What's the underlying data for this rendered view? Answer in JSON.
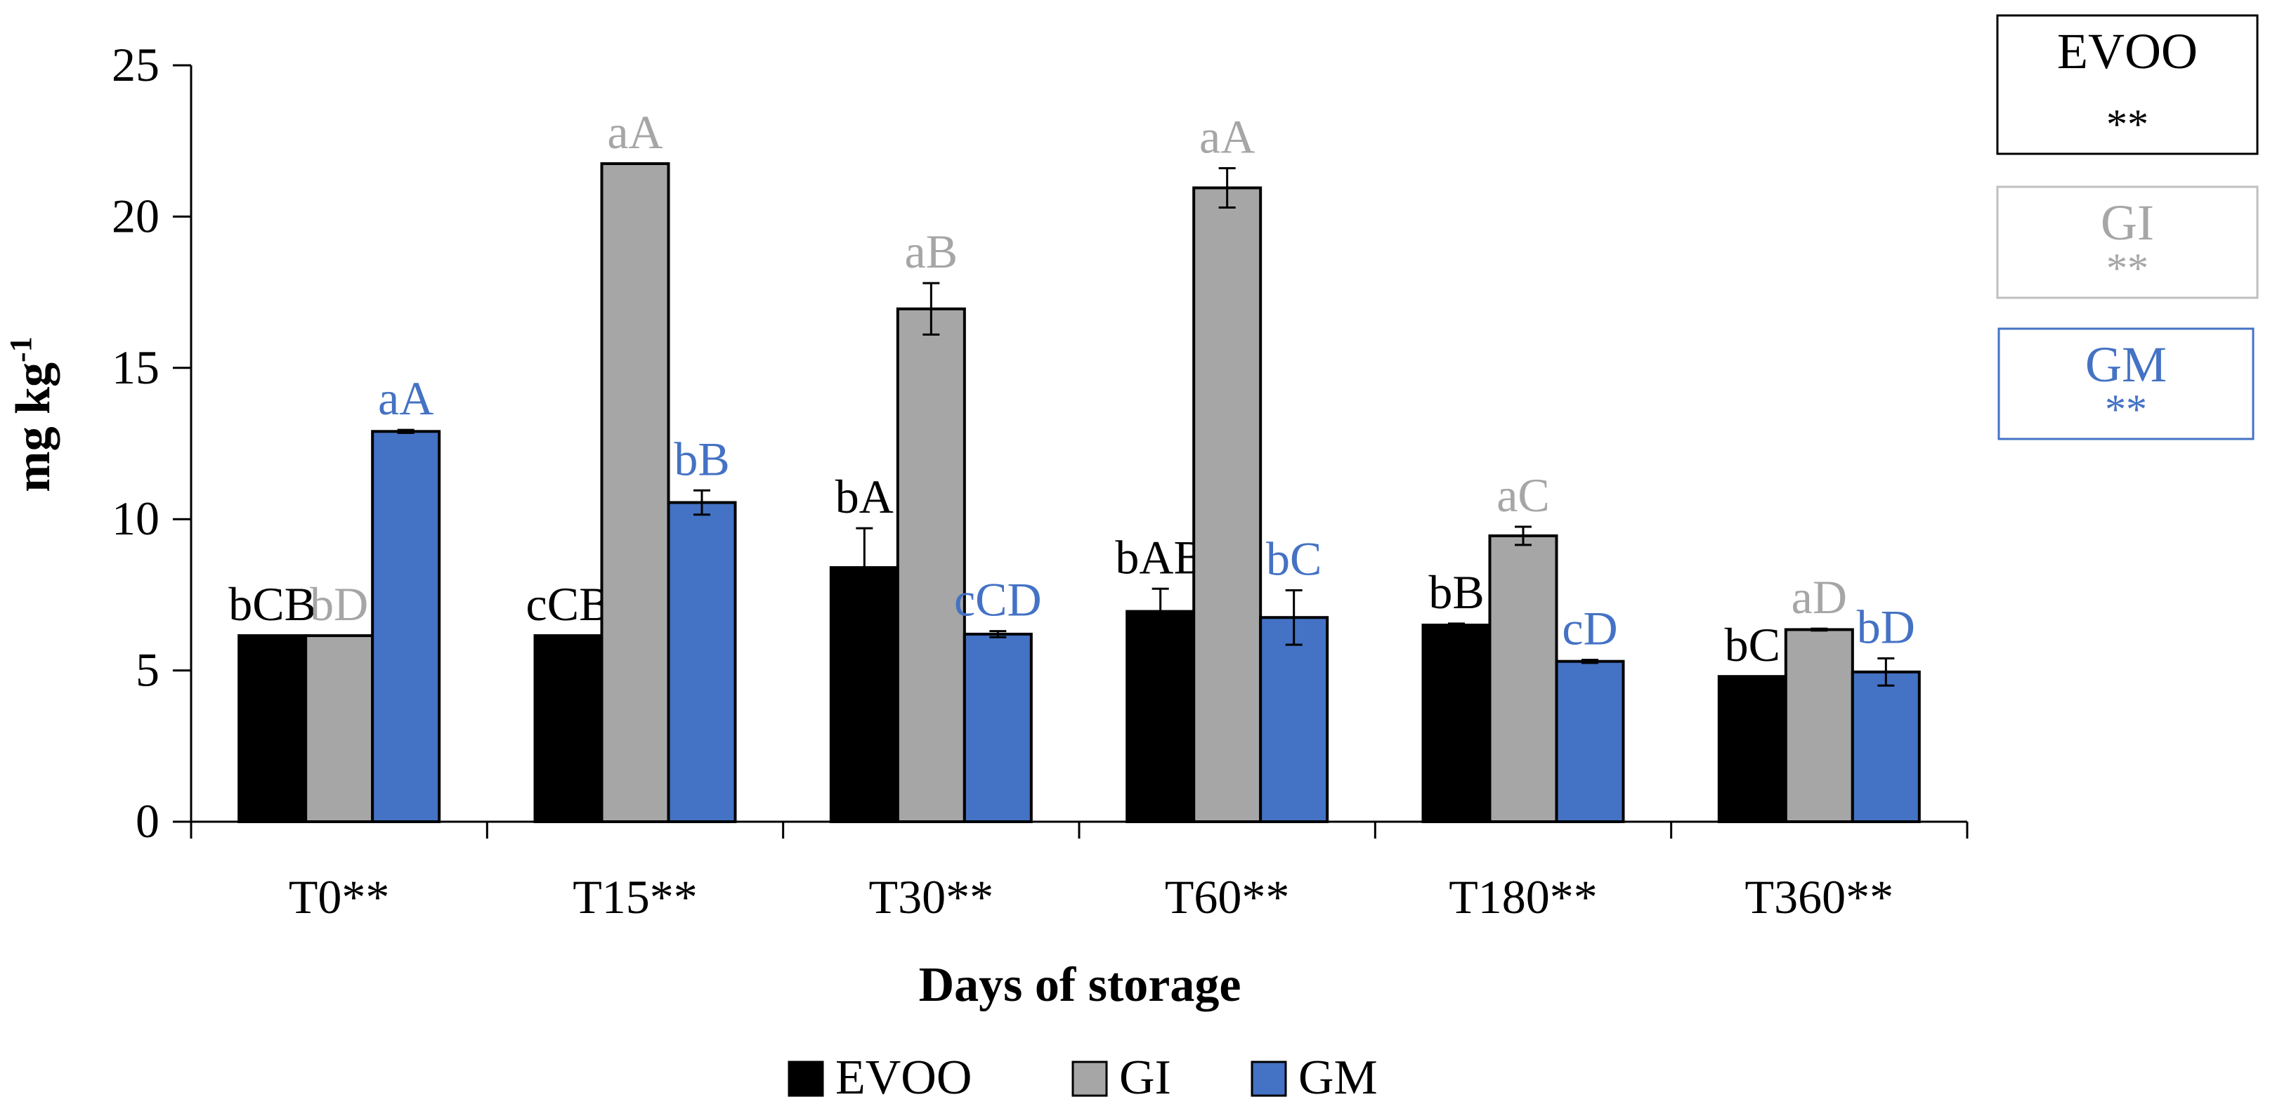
{
  "chart_data": {
    "type": "bar",
    "title": "",
    "xlabel": "Days of storage",
    "ylabel": "mg kg",
    "ylabel_superscript": "-1",
    "ylim": [
      0,
      25
    ],
    "yticks": [
      "0",
      "5",
      "10",
      "15",
      "20",
      "25"
    ],
    "categories": [
      "T0**",
      "T15**",
      "T30**",
      "T60**",
      "T180**",
      "T360**"
    ],
    "series": [
      {
        "name": "EVOO",
        "color": "#000000",
        "label_color": "#000000",
        "values": [
          6.15,
          6.15,
          8.4,
          6.95,
          6.5,
          4.8
        ],
        "errors": [
          0,
          0,
          1.3,
          0.75,
          0.05,
          0
        ],
        "letters": [
          "bCB",
          "cCB",
          "bA",
          "bAB",
          "bB",
          "bC"
        ]
      },
      {
        "name": "GI",
        "color": "#a6a6a6",
        "label_color": "#a6a6a6",
        "values": [
          6.15,
          21.75,
          16.95,
          20.95,
          9.45,
          6.35
        ],
        "errors": [
          0,
          0,
          0.85,
          0.65,
          0.3,
          0.03
        ],
        "letters": [
          "bD",
          "aA",
          "aB",
          "aA",
          "aC",
          "aD"
        ]
      },
      {
        "name": "GM",
        "color": "#4472c4",
        "label_color": "#4472c4",
        "values": [
          12.9,
          10.55,
          6.2,
          6.75,
          5.3,
          4.95
        ],
        "errors": [
          0.05,
          0.4,
          0.1,
          0.9,
          0.05,
          0.45
        ],
        "letters": [
          "aA",
          "bB",
          "cCD",
          "bC",
          "cD",
          "bD"
        ]
      }
    ],
    "significance_boxes": [
      {
        "name": "EVOO",
        "stars": "**",
        "color": "#000000",
        "border": "#000000"
      },
      {
        "name": "GI",
        "stars": "**",
        "color": "#a6a6a6",
        "border": "#bfbfbf"
      },
      {
        "name": "GM",
        "stars": "**",
        "color": "#4472c4",
        "border": "#4472c4"
      }
    ],
    "legend": {
      "placement": "bottom-center",
      "entries": [
        "EVOO",
        "GI",
        "GM"
      ]
    }
  }
}
